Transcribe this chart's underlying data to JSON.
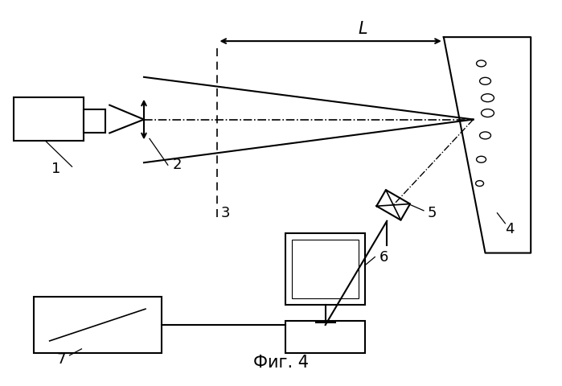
{
  "title": "Фиг. 4",
  "bg_color": "#ffffff",
  "fig_width": 6.99,
  "fig_height": 4.8,
  "dpi": 100,
  "label_L": "L"
}
